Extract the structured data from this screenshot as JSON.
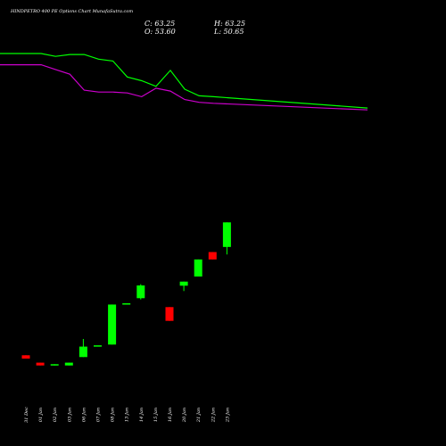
{
  "header": {
    "title": "HINDPETRO 400 PE Options Chart MunafaSutra.com",
    "close_text": "C: 63.25",
    "open_text": "O: 53.60",
    "high_text": "H: 63.25",
    "low_text": "L: 50.65"
  },
  "colors": {
    "background": "#000000",
    "up": "#00ff00",
    "down": "#ff0000",
    "line_green": "#00ff00",
    "line_magenta": "#cc00cc",
    "text": "#ffffff"
  },
  "chart_data": {
    "type": "candlestick",
    "title": "HINDPETRO 400 PE Options Chart MunafaSutra.com",
    "categories": [
      "31 Dec",
      "01 Jan",
      "02 Jan",
      "03 Jan",
      "06 Jan",
      "07 Jan",
      "08 Jan",
      "13 Jan",
      "14 Jan",
      "15 Jan",
      "16 Jan",
      "20 Jan",
      "21 Jan",
      "22 Jan",
      "23 Jan"
    ],
    "candles": [
      {
        "open": 11.1,
        "high": 11.1,
        "low": 9.8,
        "close": 9.8
      },
      {
        "open": 8.2,
        "high": 8.2,
        "low": 7.1,
        "close": 7.1
      },
      {
        "open": 7.1,
        "high": 7.6,
        "low": 7.1,
        "close": 7.6
      },
      {
        "open": 7.1,
        "high": 8.2,
        "low": 7.1,
        "close": 8.2
      },
      {
        "open": 10.4,
        "high": 17.5,
        "low": 10.4,
        "close": 14.5
      },
      {
        "open": 15.0,
        "high": 15.0,
        "low": 15.0,
        "close": 15.0
      },
      {
        "open": 15.3,
        "high": 31.0,
        "low": 15.3,
        "close": 31.0
      },
      {
        "open": 31.5,
        "high": 31.5,
        "low": 31.5,
        "close": 31.5
      },
      {
        "open": 33.5,
        "high": 39.0,
        "low": 33.0,
        "close": 38.5
      },
      {
        "open": 30.0,
        "high": 30.0,
        "low": 24.6,
        "close": 24.6
      },
      {
        "open": 38.4,
        "high": 40.0,
        "low": 36.3,
        "close": 40.0
      },
      {
        "open": 42.0,
        "high": 48.7,
        "low": 42.0,
        "close": 48.7
      },
      {
        "open": 51.6,
        "high": 51.6,
        "low": 48.7,
        "close": 48.7
      },
      {
        "open": 53.6,
        "high": 63.25,
        "low": 50.65,
        "close": 63.25
      }
    ],
    "candle_categories": [
      "31 Dec",
      "01 Jan",
      "02 Jan",
      "03 Jan",
      "06 Jan",
      "07 Jan",
      "08 Jan",
      "13 Jan",
      "14 Jan",
      "16 Jan",
      "20 Jan",
      "21 Jan",
      "22 Jan",
      "23 Jan"
    ],
    "series": [
      {
        "color": "#00ff00",
        "values": [
          171,
          171,
          168,
          170,
          170,
          165,
          163,
          146,
          142,
          136,
          153,
          133,
          126,
          125,
          113
        ]
      },
      {
        "color": "#cc00cc",
        "values": [
          159,
          159,
          154,
          149,
          132,
          130,
          130,
          129,
          125,
          134,
          131,
          122,
          119,
          118,
          111
        ]
      }
    ],
    "price_range": [
      0,
      70
    ],
    "indicator_range": [
      0,
      190
    ],
    "grid": false,
    "legend": "none"
  }
}
